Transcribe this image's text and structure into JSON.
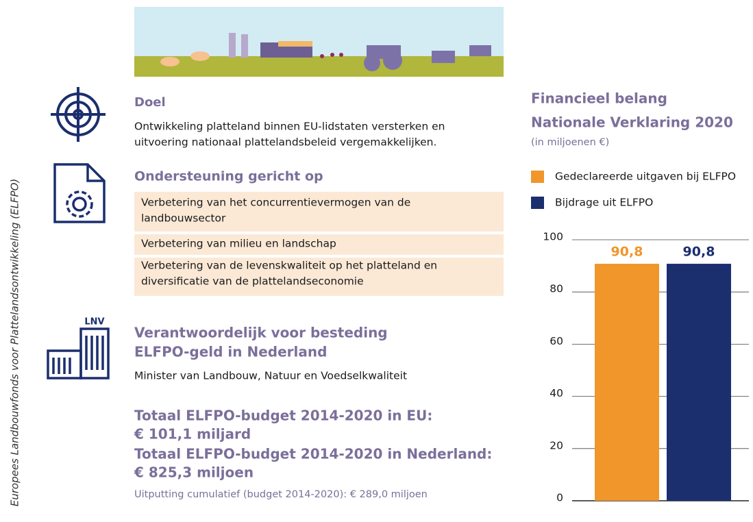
{
  "side_label": "Europees Landbouwfonds voor Plattelandsontwikkeling (ELFPO)",
  "goal": {
    "title": "Doel",
    "lines": [
      "Ontwikkeling platteland binnen EU-lidstaten versterken en",
      "uitvoering nationaal plattelandsbeleid vergemakkelijken."
    ]
  },
  "support": {
    "title": "Ondersteuning gericht op",
    "items": [
      [
        "Verbetering van het concurrentievermogen van de",
        "landbouwsector"
      ],
      [
        "Verbetering van milieu en landschap"
      ],
      [
        "Verbetering van de levenskwaliteit op het platteland en",
        "diversificatie van de plattelandseconomie"
      ]
    ]
  },
  "responsible": {
    "icon_label": "LNV",
    "title": [
      "Verantwoordelijk voor besteding",
      "ELFPO-geld in Nederland"
    ],
    "text": "Minister van Landbouw, Natuur en Voedselkwaliteit"
  },
  "budget": {
    "lines": [
      "Totaal ELFPO-budget 2014-2020 in EU:",
      "€ 101,1 miljard",
      "Totaal ELFPO-budget 2014-2020 in Nederland:",
      "€ 825,3 miljoen"
    ],
    "note": "Uitputting cumulatief (budget 2014-2020): € 289,0 miljoen"
  },
  "chart_data": {
    "type": "bar",
    "title": [
      "Financieel belang",
      "Nationale Verklaring 2020"
    ],
    "subtitle": "(in miljoenen €)",
    "categories": [
      null
    ],
    "series": [
      {
        "name": "Gedeclareerde uitgaven bij ELFPO",
        "color": "#f0962a",
        "values": [
          90.8
        ],
        "value_labels": [
          "90,8"
        ]
      },
      {
        "name": "Bijdrage uit ELFPO",
        "color": "#1b2f6e",
        "values": [
          90.8
        ],
        "value_labels": [
          "90,8"
        ]
      }
    ],
    "ylim": [
      0,
      100
    ],
    "yticks": [
      0,
      20,
      40,
      60,
      80,
      100
    ],
    "grid": true
  }
}
